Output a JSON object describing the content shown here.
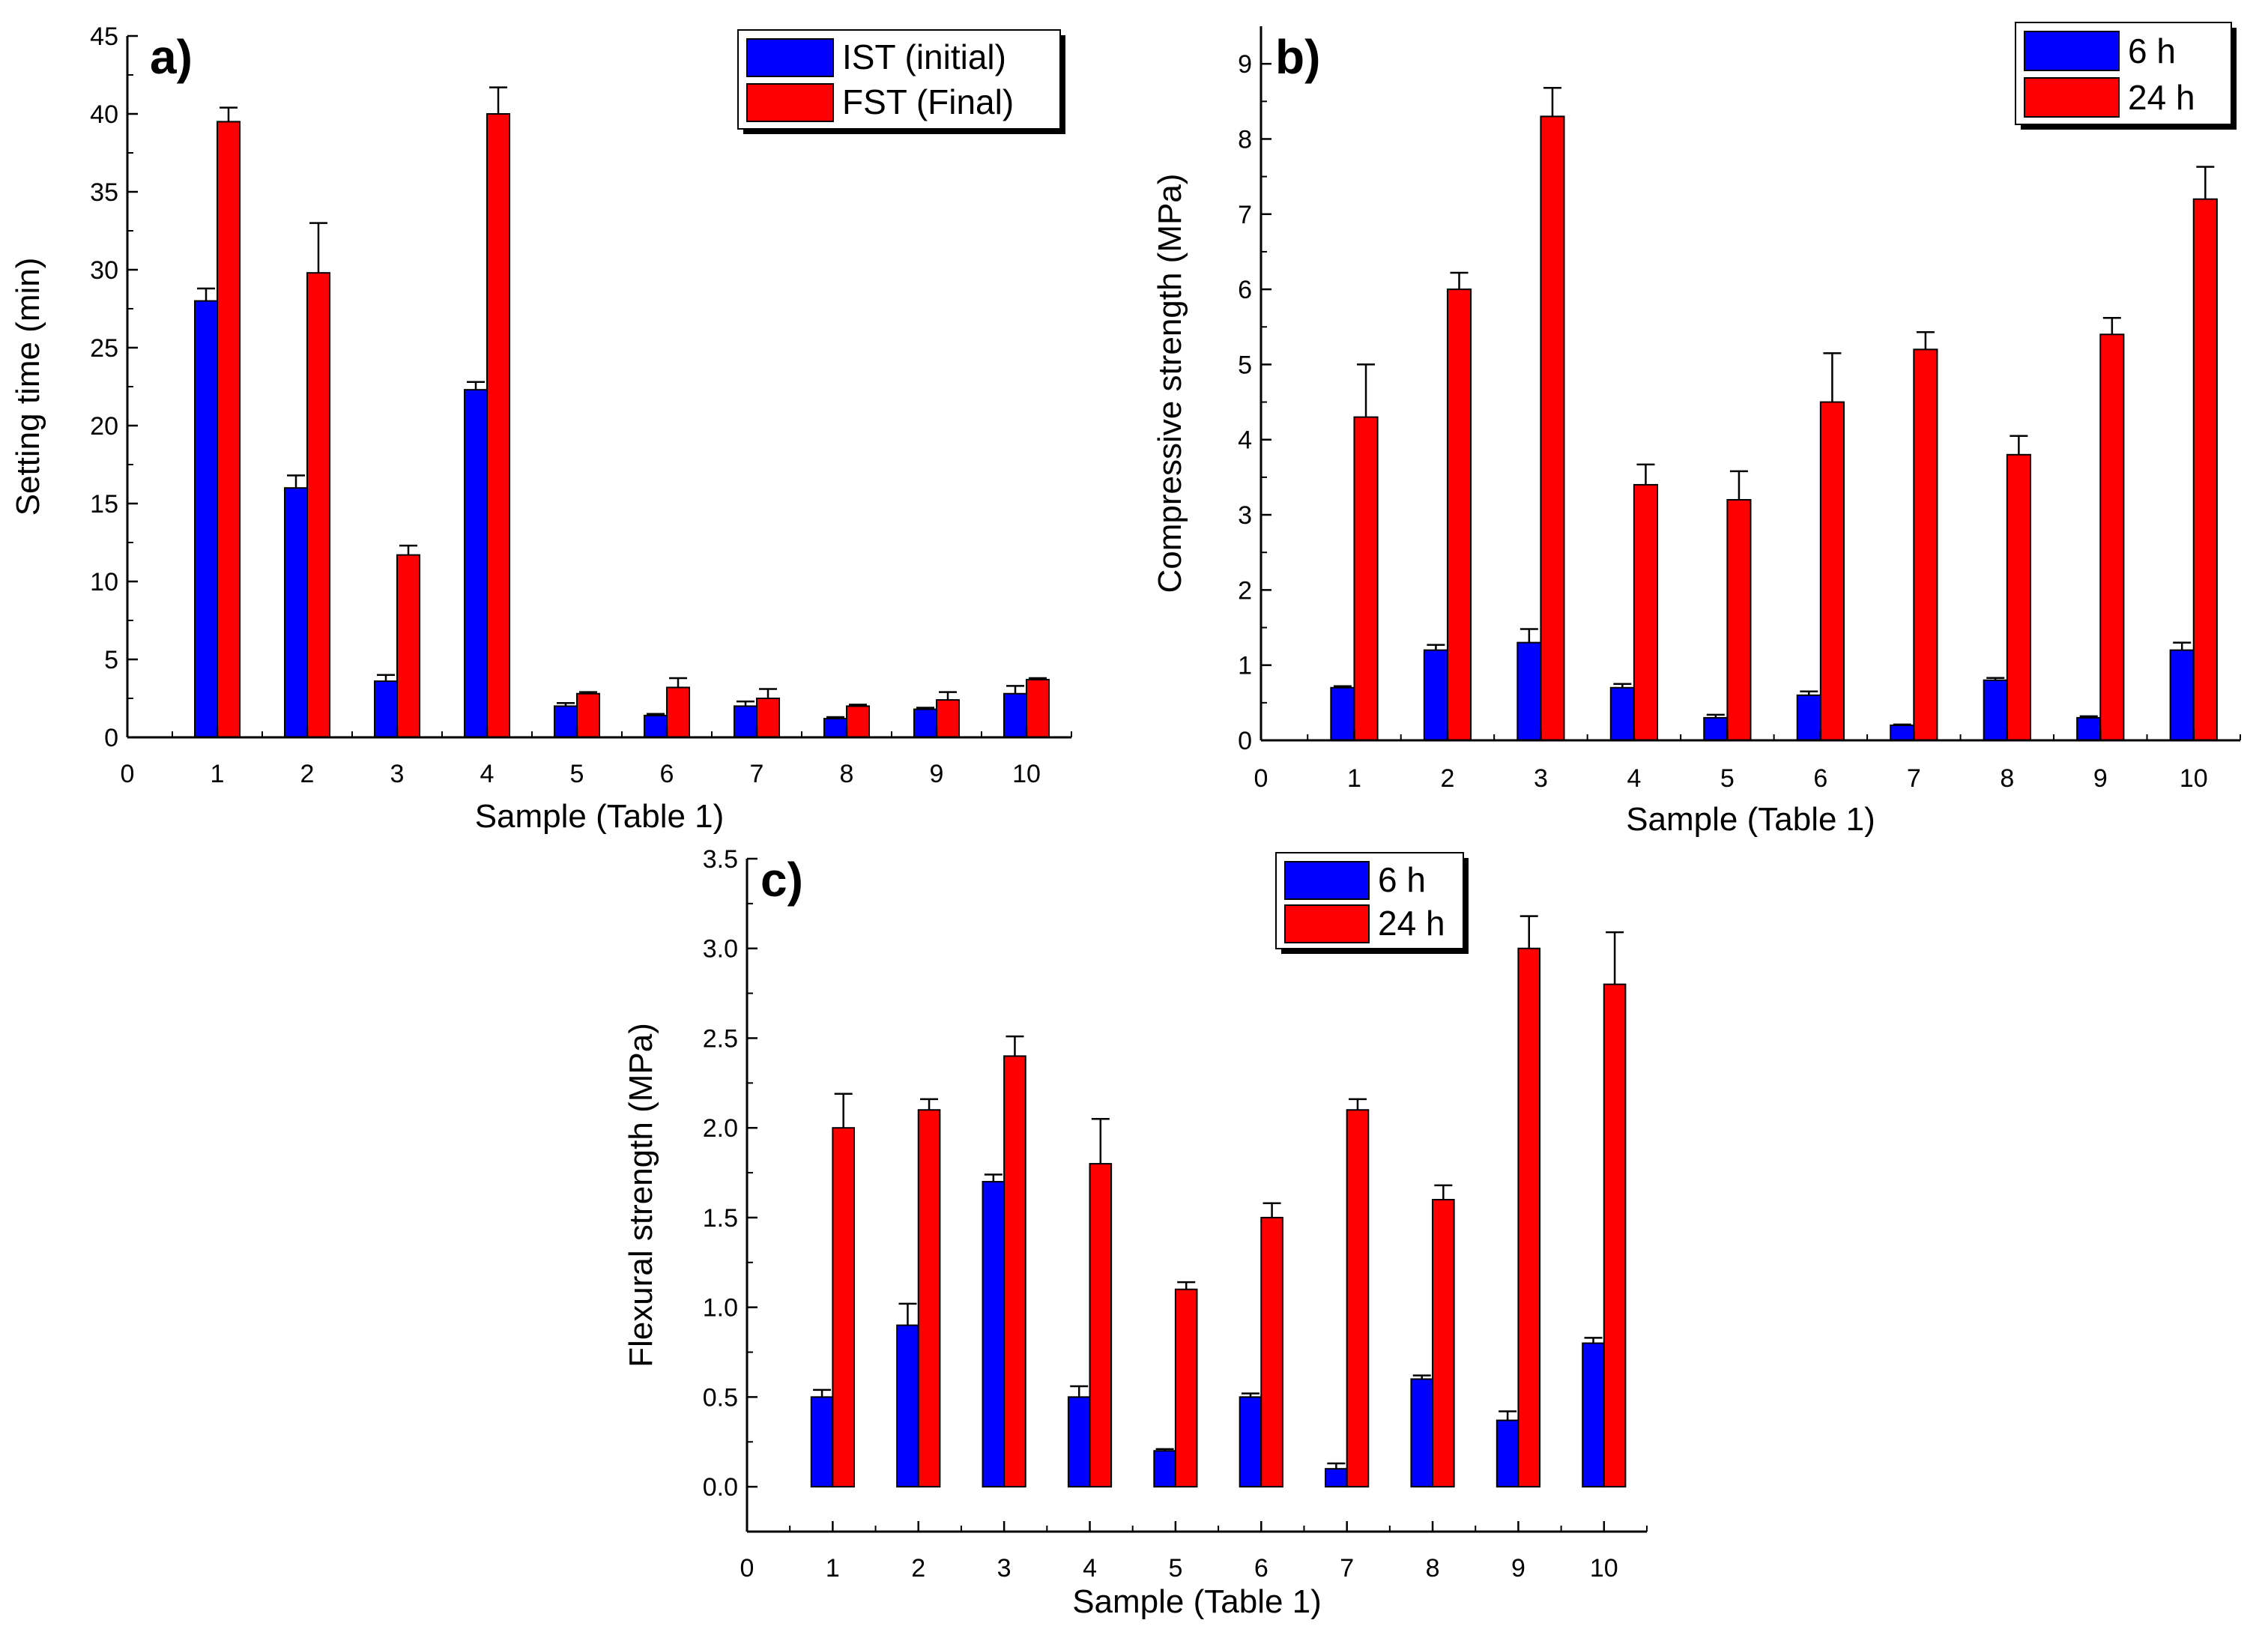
{
  "chart_data": [
    {
      "type": "bar",
      "panel_label": "a)",
      "title": "",
      "xlabel": "Sample (Table 1)",
      "ylabel": "Setting time (min)",
      "xlim": [
        0,
        10.5
      ],
      "ylim": [
        0,
        45
      ],
      "x_ticks": [
        0,
        1,
        2,
        3,
        4,
        5,
        6,
        7,
        8,
        9,
        10
      ],
      "y_ticks": [
        0,
        5,
        10,
        15,
        20,
        25,
        30,
        35,
        40,
        45
      ],
      "categories": [
        1,
        2,
        3,
        4,
        5,
        6,
        7,
        8,
        9,
        10
      ],
      "series": [
        {
          "name": "IST (initial)",
          "color": "#0000ff",
          "values": [
            28.0,
            16.0,
            3.6,
            22.3,
            2.0,
            1.4,
            2.0,
            1.2,
            1.8,
            2.8
          ],
          "errors": [
            0.8,
            0.8,
            0.4,
            0.5,
            0.2,
            0.1,
            0.3,
            0.1,
            0.1,
            0.5
          ]
        },
        {
          "name": "FST (Final)",
          "color": "#ff0000",
          "values": [
            39.5,
            29.8,
            11.7,
            40.0,
            2.8,
            3.2,
            2.5,
            2.0,
            2.4,
            3.7
          ],
          "errors": [
            0.9,
            3.2,
            0.6,
            1.7,
            0.1,
            0.6,
            0.6,
            0.1,
            0.5,
            0.1
          ]
        }
      ],
      "legend_position": "top-right"
    },
    {
      "type": "bar",
      "panel_label": "b)",
      "title": "",
      "xlabel": "Sample (Table 1)",
      "ylabel": "Compressive strength (MPa)",
      "xlim": [
        0,
        10.5
      ],
      "ylim": [
        0,
        9.5
      ],
      "x_ticks": [
        0,
        1,
        2,
        3,
        4,
        5,
        6,
        7,
        8,
        9,
        10
      ],
      "y_ticks": [
        0,
        1,
        2,
        3,
        4,
        5,
        6,
        7,
        8,
        9
      ],
      "categories": [
        1,
        2,
        3,
        4,
        5,
        6,
        7,
        8,
        9,
        10
      ],
      "series": [
        {
          "name": "6 h",
          "color": "#0000ff",
          "values": [
            0.7,
            1.2,
            1.3,
            0.7,
            0.3,
            0.6,
            0.2,
            0.8,
            0.3,
            1.2
          ],
          "errors": [
            0.02,
            0.07,
            0.18,
            0.05,
            0.04,
            0.05,
            0.01,
            0.03,
            0.02,
            0.1
          ]
        },
        {
          "name": "24 h",
          "color": "#ff0000",
          "values": [
            4.3,
            6.0,
            8.3,
            3.4,
            3.2,
            4.5,
            5.2,
            3.8,
            5.4,
            7.2
          ],
          "errors": [
            0.7,
            0.22,
            0.38,
            0.27,
            0.38,
            0.65,
            0.23,
            0.25,
            0.22,
            0.43
          ]
        }
      ],
      "legend_position": "top-right"
    },
    {
      "type": "bar",
      "panel_label": "c)",
      "title": "",
      "xlabel": "Sample (Table 1)",
      "ylabel": "Flexural strength (MPa)",
      "xlim": [
        0,
        10.5
      ],
      "ylim": [
        -0.25,
        3.5
      ],
      "x_ticks": [
        0,
        1,
        2,
        3,
        4,
        5,
        6,
        7,
        8,
        9,
        10
      ],
      "y_ticks": [
        "0.0",
        "0.5",
        "1.0",
        "1.5",
        "2.0",
        "2.5",
        "3.0",
        "3.5"
      ],
      "categories": [
        1,
        2,
        3,
        4,
        5,
        6,
        7,
        8,
        9,
        10
      ],
      "series": [
        {
          "name": "6 h",
          "color": "#0000ff",
          "values": [
            0.5,
            0.9,
            1.7,
            0.5,
            0.2,
            0.5,
            0.1,
            0.6,
            0.37,
            0.8
          ],
          "errors": [
            0.04,
            0.12,
            0.04,
            0.06,
            0.01,
            0.02,
            0.03,
            0.02,
            0.05,
            0.03
          ]
        },
        {
          "name": "24 h",
          "color": "#ff0000",
          "values": [
            2.0,
            2.1,
            2.4,
            1.8,
            1.1,
            1.5,
            2.1,
            1.6,
            3.0,
            2.8
          ],
          "errors": [
            0.19,
            0.06,
            0.11,
            0.25,
            0.04,
            0.08,
            0.06,
            0.08,
            0.18,
            0.29
          ]
        }
      ],
      "legend_position": "top-right"
    }
  ]
}
